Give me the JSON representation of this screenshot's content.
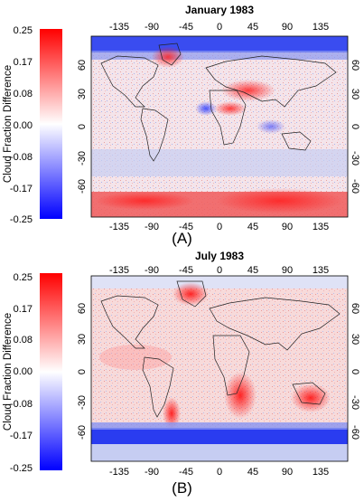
{
  "colorbar": {
    "label": "Cloud Fraction Difference",
    "ticks": [
      "0.25",
      "0.17",
      "0.08",
      "0.00",
      "-0.08",
      "-0.17",
      "-0.25"
    ],
    "colors": {
      "high": "#ff0000",
      "mid": "#ffffff",
      "low": "#0000ff"
    }
  },
  "axes": {
    "lon_ticks": [
      "-135",
      "-90",
      "-45",
      "0",
      "45",
      "90",
      "135"
    ],
    "lat_ticks": [
      "60",
      "30",
      "0",
      "-30",
      "-60"
    ]
  },
  "panels": [
    {
      "title": "January 1983",
      "letter": "(A)"
    },
    {
      "title": "July 1983",
      "letter": "(B)"
    }
  ]
}
